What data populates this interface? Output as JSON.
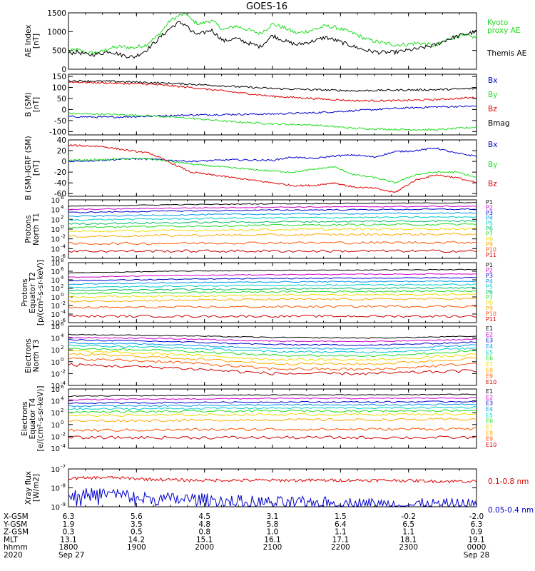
{
  "title": "GOES-16",
  "colors": {
    "black": "#000000",
    "red": "#dd0000",
    "green": "#22dd22",
    "blue": "#0000cc",
    "kyoto": "#22dd22",
    "ch11": [
      "#000000",
      "#cc00cc",
      "#0000cc",
      "#0099ee",
      "#00cccc",
      "#00bb66",
      "#22dd22",
      "#eedd00",
      "#ffaa00",
      "#ff5500",
      "#cc0000"
    ],
    "e10": [
      "#000000",
      "#cc00cc",
      "#0000cc",
      "#0099ee",
      "#00cccc",
      "#22dd22",
      "#eedd00",
      "#ffaa00",
      "#ff5500",
      "#cc0000"
    ]
  },
  "chart_data": [
    {
      "type": "line",
      "panel": "ae",
      "ylabel": "AE Index\n[nT]",
      "ylim": [
        0,
        1500
      ],
      "yticks": [
        "0",
        "500",
        "1000",
        "1500"
      ],
      "scale": "linear",
      "series": [
        {
          "name": "Kyoto\nproxy AE",
          "color": "#22dd22",
          "x": [
            0,
            0.02,
            0.05,
            0.08,
            0.1,
            0.13,
            0.16,
            0.19,
            0.22,
            0.25,
            0.27,
            0.29,
            0.3,
            0.32,
            0.35,
            0.38,
            0.41,
            0.44,
            0.47,
            0.5,
            0.53,
            0.56,
            0.6,
            0.63,
            0.66,
            0.7,
            0.73,
            0.76,
            0.8,
            0.83,
            0.86,
            0.9,
            0.93,
            0.96,
            1
          ],
          "values": [
            480,
            520,
            430,
            460,
            560,
            600,
            570,
            650,
            900,
            1300,
            1420,
            1480,
            1320,
            1200,
            1300,
            1050,
            1150,
            1050,
            950,
            1200,
            1100,
            950,
            1050,
            1150,
            1100,
            950,
            800,
            720,
            650,
            660,
            700,
            620,
            800,
            900,
            850
          ]
        },
        {
          "name": "Themis AE",
          "color": "#000000",
          "x": [
            0,
            0.02,
            0.05,
            0.08,
            0.1,
            0.13,
            0.16,
            0.19,
            0.22,
            0.25,
            0.27,
            0.29,
            0.3,
            0.32,
            0.35,
            0.38,
            0.41,
            0.44,
            0.47,
            0.5,
            0.53,
            0.56,
            0.6,
            0.63,
            0.66,
            0.7,
            0.73,
            0.76,
            0.8,
            0.83,
            0.86,
            0.9,
            0.93,
            0.96,
            1
          ],
          "values": [
            420,
            460,
            380,
            420,
            480,
            380,
            320,
            500,
            800,
            1100,
            1240,
            1180,
            1000,
            920,
            1050,
            750,
            820,
            700,
            600,
            900,
            750,
            650,
            750,
            850,
            750,
            600,
            500,
            450,
            450,
            500,
            550,
            650,
            800,
            900,
            1000
          ]
        }
      ]
    },
    {
      "type": "line",
      "panel": "b",
      "ylabel": "B (SM)\n[nT]",
      "ylim": [
        -115,
        160
      ],
      "yticks": [
        "-100",
        "-50",
        "0",
        "50",
        "100",
        "150"
      ],
      "scale": "linear",
      "series": [
        {
          "name": "Bx",
          "color": "#0000cc",
          "x": [
            0,
            0.1,
            0.2,
            0.3,
            0.4,
            0.5,
            0.6,
            0.7,
            0.8,
            0.9,
            1
          ],
          "values": [
            -32,
            -35,
            -30,
            -25,
            -22,
            -20,
            -15,
            -5,
            5,
            12,
            15
          ]
        },
        {
          "name": "By",
          "color": "#22dd22",
          "x": [
            0,
            0.1,
            0.2,
            0.3,
            0.4,
            0.5,
            0.6,
            0.7,
            0.8,
            0.9,
            1
          ],
          "values": [
            -18,
            -22,
            -28,
            -40,
            -55,
            -65,
            -70,
            -85,
            -90,
            -92,
            -80
          ]
        },
        {
          "name": "Bz",
          "color": "#dd0000",
          "x": [
            0,
            0.1,
            0.2,
            0.3,
            0.4,
            0.5,
            0.6,
            0.7,
            0.8,
            0.9,
            1
          ],
          "values": [
            125,
            120,
            115,
            100,
            80,
            60,
            50,
            40,
            40,
            45,
            55
          ]
        },
        {
          "name": "Bmag",
          "color": "#000000",
          "x": [
            0,
            0.1,
            0.2,
            0.3,
            0.4,
            0.5,
            0.6,
            0.7,
            0.8,
            0.9,
            1
          ],
          "values": [
            130,
            128,
            122,
            115,
            105,
            95,
            90,
            85,
            88,
            90,
            95
          ]
        }
      ]
    },
    {
      "type": "line",
      "panel": "db",
      "ylabel": "B (SM)-IGRF (SM)\n[nT]",
      "ylim": [
        -65,
        40
      ],
      "yticks": [
        "-60",
        "-40",
        "-20",
        "0",
        "20",
        "40"
      ],
      "scale": "linear",
      "series": [
        {
          "name": "Bx",
          "color": "#0000cc",
          "x": [
            0,
            0.08,
            0.15,
            0.2,
            0.3,
            0.4,
            0.5,
            0.55,
            0.6,
            0.65,
            0.7,
            0.75,
            0.8,
            0.85,
            0.9,
            0.95,
            1
          ],
          "values": [
            0,
            2,
            5,
            4,
            0,
            3,
            2,
            8,
            5,
            10,
            12,
            8,
            18,
            20,
            25,
            15,
            10
          ]
        },
        {
          "name": "By",
          "color": "#22dd22",
          "x": [
            0,
            0.08,
            0.15,
            0.2,
            0.3,
            0.4,
            0.5,
            0.55,
            0.6,
            0.65,
            0.7,
            0.75,
            0.8,
            0.85,
            0.9,
            0.95,
            1
          ],
          "values": [
            2,
            3,
            5,
            5,
            -5,
            -12,
            -18,
            -20,
            -15,
            -10,
            -25,
            -30,
            -40,
            -25,
            -20,
            -20,
            -30
          ]
        },
        {
          "name": "Bz",
          "color": "#dd0000",
          "x": [
            0,
            0.08,
            0.15,
            0.2,
            0.3,
            0.4,
            0.5,
            0.55,
            0.6,
            0.65,
            0.7,
            0.75,
            0.8,
            0.85,
            0.9,
            0.95,
            1
          ],
          "values": [
            30,
            28,
            20,
            15,
            -20,
            -30,
            -40,
            -45,
            -45,
            -40,
            -48,
            -50,
            -58,
            -35,
            -25,
            -30,
            -40
          ]
        }
      ]
    },
    {
      "type": "line",
      "panel": "pn",
      "ylabel": "Protons\nNorth T1",
      "ylim": [
        -6,
        6
      ],
      "scale": "log",
      "ytick_exponents": [
        "6",
        "4",
        "2",
        "0",
        "-2",
        "-4",
        "-6"
      ],
      "channels": [
        "P1",
        "P2",
        "P3",
        "P4",
        "P5",
        "P6",
        "P7",
        "P8",
        "P9",
        "P10",
        "P11"
      ],
      "x": [
        0,
        0.25,
        0.5,
        0.75,
        1
      ],
      "log_levels": [
        [
          4.7,
          5.0,
          5.2,
          5.3,
          5.4
        ],
        [
          4.0,
          4.3,
          4.5,
          4.6,
          4.7
        ],
        [
          3.4,
          3.7,
          3.9,
          4.0,
          4.1
        ],
        [
          2.6,
          2.9,
          3.1,
          3.2,
          3.3
        ],
        [
          1.9,
          2.1,
          2.3,
          2.4,
          2.5
        ],
        [
          1.1,
          1.3,
          1.5,
          1.6,
          1.7
        ],
        [
          0.4,
          0.6,
          0.8,
          0.9,
          1.0
        ],
        [
          -0.5,
          -0.3,
          -0.1,
          0.0,
          0.1
        ],
        [
          -1.5,
          -1.3,
          -1.2,
          -1.1,
          -1.0
        ],
        [
          -3.0,
          -2.9,
          -2.8,
          -2.8,
          -2.7
        ],
        [
          -4.5,
          -4.5,
          -4.5,
          -4.5,
          -4.5
        ]
      ]
    },
    {
      "type": "line",
      "panel": "pe",
      "ylabel": "Protons\nEquator T2\n[p/(cm²-s-sr-keV)]",
      "ylim": [
        -6,
        8
      ],
      "scale": "log",
      "ytick_exponents": [
        "8",
        "6",
        "4",
        "2",
        "0",
        "-2",
        "-4",
        "-6"
      ],
      "channels": [
        "P1",
        "P2",
        "P3",
        "P4",
        "P5",
        "P6",
        "P7",
        "P8",
        "P9",
        "P10",
        "P11"
      ],
      "x": [
        0,
        0.25,
        0.5,
        0.75,
        1
      ],
      "log_levels": [
        [
          5.6,
          6.0,
          6.2,
          6.3,
          6.4
        ],
        [
          4.6,
          5.0,
          5.2,
          5.3,
          5.4
        ],
        [
          3.8,
          4.1,
          4.3,
          4.4,
          4.5
        ],
        [
          3.0,
          3.3,
          3.5,
          3.6,
          3.7
        ],
        [
          2.2,
          2.5,
          2.7,
          2.8,
          2.9
        ],
        [
          1.5,
          1.7,
          1.9,
          2.0,
          2.1
        ],
        [
          0.8,
          1.0,
          1.2,
          1.3,
          1.4
        ],
        [
          0.0,
          0.2,
          0.4,
          0.5,
          0.6
        ],
        [
          -1.0,
          -0.8,
          -0.6,
          -0.5,
          -0.4
        ],
        [
          -2.5,
          -2.4,
          -2.3,
          -2.2,
          -2.2
        ],
        [
          -4.5,
          -4.5,
          -4.5,
          -4.5,
          -4.5
        ]
      ]
    },
    {
      "type": "line",
      "panel": "en",
      "ylabel": "Electrons\nNorth T3",
      "ylim": [
        -4,
        6
      ],
      "scale": "log",
      "ytick_exponents": [
        "6",
        "4",
        "2",
        "0",
        "-2",
        "-4"
      ],
      "channels": [
        "E1",
        "E2",
        "E3",
        "E4",
        "E5",
        "E6",
        "E7",
        "E8",
        "E9",
        "E10"
      ],
      "x": [
        0,
        0.25,
        0.5,
        0.75,
        1
      ],
      "log_levels": [
        [
          4.6,
          4.4,
          4.1,
          4.0,
          4.3
        ],
        [
          4.1,
          3.9,
          3.5,
          3.4,
          3.8
        ],
        [
          3.7,
          3.4,
          2.9,
          2.8,
          3.3
        ],
        [
          3.2,
          2.9,
          2.3,
          2.2,
          2.8
        ],
        [
          2.8,
          2.4,
          1.7,
          1.6,
          2.3
        ],
        [
          2.3,
          1.9,
          1.1,
          1.0,
          1.8
        ],
        [
          1.8,
          1.3,
          0.4,
          0.3,
          1.2
        ],
        [
          1.3,
          0.7,
          -0.3,
          -0.4,
          0.6
        ],
        [
          0.5,
          0.0,
          -1.2,
          -1.3,
          -0.3
        ],
        [
          -0.5,
          -1.0,
          -2.0,
          -2.0,
          -1.5
        ]
      ]
    },
    {
      "type": "line",
      "panel": "ee",
      "ylabel": "Electrons\nEquator T4\n[e/(cm²-s-sr-keV)]",
      "ylim": [
        -4,
        6
      ],
      "scale": "log",
      "ytick_exponents": [
        "6",
        "4",
        "2",
        "0",
        "-2",
        "-4"
      ],
      "channels": [
        "E1",
        "E2",
        "E3",
        "E4",
        "E5",
        "E6",
        "E7",
        "E8",
        "E9",
        "E10"
      ],
      "x": [
        0,
        0.25,
        0.5,
        0.75,
        1
      ],
      "log_levels": [
        [
          4.8,
          4.9,
          5.0,
          5.0,
          5.1
        ],
        [
          4.2,
          4.3,
          4.4,
          4.4,
          4.5
        ],
        [
          3.6,
          3.7,
          3.8,
          3.8,
          3.9
        ],
        [
          3.1,
          3.2,
          3.3,
          3.3,
          3.4
        ],
        [
          2.6,
          2.7,
          2.8,
          2.8,
          2.9
        ],
        [
          2.1,
          2.2,
          2.3,
          2.3,
          2.4
        ],
        [
          1.5,
          1.6,
          1.7,
          1.7,
          1.8
        ],
        [
          0.6,
          0.7,
          0.8,
          0.8,
          0.9
        ],
        [
          -1.0,
          -0.9,
          -0.8,
          -0.8,
          -0.7
        ],
        [
          -2.2,
          -2.2,
          -2.2,
          -2.2,
          -2.2
        ]
      ]
    },
    {
      "type": "line",
      "panel": "xray",
      "ylabel": "Xray flux\n[W/m2]",
      "ylim": [
        -9,
        -7
      ],
      "scale": "log",
      "ytick_exponents": [
        "-7",
        "-8",
        "-9"
      ],
      "series": [
        {
          "name": "0.1-0.8 nm",
          "color": "#dd0000",
          "x": [
            0,
            0.1,
            0.2,
            0.3,
            0.4,
            0.5,
            0.6,
            0.7,
            0.8,
            0.9,
            1
          ],
          "values": [
            -7.5,
            -7.45,
            -7.55,
            -7.6,
            -7.6,
            -7.6,
            -7.6,
            -7.6,
            -7.6,
            -7.65,
            -7.65
          ]
        },
        {
          "name": "0.05-0.4 nm",
          "color": "#0000cc",
          "x": [
            0,
            0.1,
            0.2,
            0.3,
            0.4,
            0.5,
            0.6,
            0.7,
            0.8,
            0.9,
            1
          ],
          "values": [
            -8.4,
            -8.3,
            -8.6,
            -8.6,
            -8.7,
            -8.8,
            -8.8,
            -8.85,
            -8.9,
            -8.9,
            -8.9
          ]
        }
      ]
    }
  ],
  "xaxis": {
    "row_labels": [
      "X-GSM",
      "Y-GSM",
      "Z-GSM",
      "MLT",
      "hhmm",
      "2020"
    ],
    "columns": [
      [
        "6.3",
        "1.9",
        "0.3",
        "13.1",
        "1800",
        "Sep 27"
      ],
      [
        "5.6",
        "3.5",
        "0.5",
        "14.2",
        "1900",
        ""
      ],
      [
        "4.5",
        "4.8",
        "0.8",
        "15.1",
        "2000",
        ""
      ],
      [
        "3.1",
        "5.8",
        "1.0",
        "16.1",
        "2100",
        ""
      ],
      [
        "1.5",
        "6.4",
        "1.1",
        "17.1",
        "2200",
        ""
      ],
      [
        "-0.2",
        "6.5",
        "1.1",
        "18.1",
        "2300",
        ""
      ],
      [
        "-2.0",
        "6.3",
        "0.9",
        "19.1",
        "0000",
        "Sep 28"
      ]
    ]
  }
}
